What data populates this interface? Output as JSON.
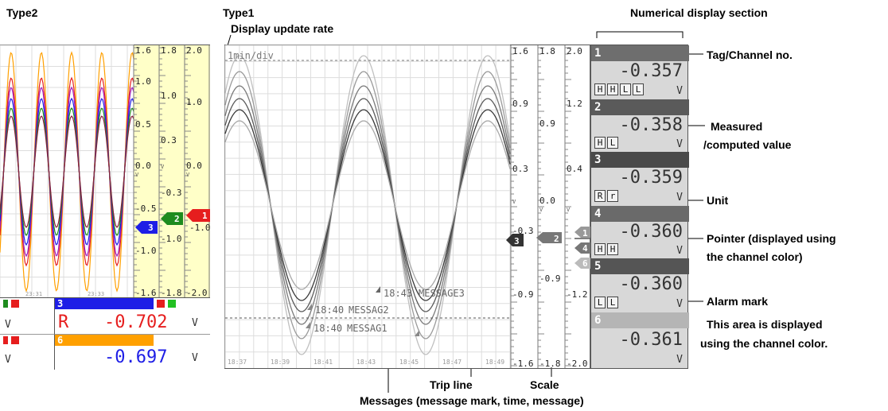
{
  "headings": {
    "type2": "Type2",
    "type1": "Type1"
  },
  "annotations": {
    "update_rate": "Display update rate",
    "numerical_section": "Numerical display section",
    "tag_channel": "Tag/Channel no.",
    "measured_1": "Measured",
    "measured_2": "/computed value",
    "unit": "Unit",
    "pointer_1": "Pointer (displayed using",
    "pointer_2": "the channel color)",
    "alarm_mark": "Alarm mark",
    "area_1": "This area is displayed",
    "area_2": "using the channel color.",
    "trip_line": "Trip line",
    "scale": "Scale",
    "messages": "Messages (message mark, time, message)"
  },
  "type1": {
    "rate_text": "1min/div",
    "time_ticks": [
      "18:37",
      "18:39",
      "18:41",
      "18:43",
      "18:45",
      "18:47",
      "18:49"
    ],
    "messages": [
      {
        "time": "18:43",
        "text": "MESSAGE3"
      },
      {
        "time": "18:40",
        "text": "MESSAG2"
      },
      {
        "time": "18:40",
        "text": "MESSAG1"
      }
    ],
    "scale1": [
      "1.6",
      "0.9",
      "0.3",
      "-0.3",
      "-0.9",
      "-1.6"
    ],
    "scale2": [
      "1.8",
      "0.9",
      "0.0",
      "-0.9",
      "-1.8"
    ],
    "scale3": [
      "2.0",
      "1.2",
      "0.4",
      "-1.2",
      "-2.0"
    ],
    "scale_unit": "V",
    "pointers": [
      "3",
      "2",
      "1",
      "4",
      "6"
    ],
    "channels": [
      {
        "no": "1",
        "value": "-0.357",
        "unit": "V",
        "alarms": [
          "H",
          "H",
          "L",
          "L"
        ],
        "color": "#6e6e6e"
      },
      {
        "no": "2",
        "value": "-0.358",
        "unit": "V",
        "alarms": [
          "H",
          "L"
        ],
        "color": "#5a5a5a"
      },
      {
        "no": "3",
        "value": "-0.359",
        "unit": "V",
        "alarms": [
          "R",
          "r"
        ],
        "color": "#4a4a4a"
      },
      {
        "no": "4",
        "value": "-0.360",
        "unit": "V",
        "alarms": [
          "H",
          "H"
        ],
        "color": "#6a6a6a"
      },
      {
        "no": "5",
        "value": "-0.360",
        "unit": "V",
        "alarms": [
          "L",
          "L"
        ],
        "color": "#555555"
      },
      {
        "no": "6",
        "value": "-0.361",
        "unit": "V",
        "alarms": [],
        "color": "#b5b5b5"
      }
    ]
  },
  "type2": {
    "scale1": [
      "1.6",
      "1.0",
      "0.5",
      "0.0",
      "-0.5",
      "-1.0",
      "-1.6"
    ],
    "scale2": [
      "1.8",
      "1.0",
      "0.3",
      "-0.3",
      "-1.0",
      "-1.8"
    ],
    "scale3": [
      "2.0",
      "1.0",
      "0.0",
      "-1.0",
      "-2.0"
    ],
    "scale_unit": "V",
    "time_ticks": [
      "23:31",
      "23:33"
    ],
    "pointers": [
      "3",
      "2",
      "1"
    ],
    "pointer_value": "-1.0",
    "row1": {
      "left_unit": "V",
      "ch_no": "3",
      "mark": "R",
      "value": "-0.702",
      "unit": "V",
      "color": "#1e1ee6"
    },
    "row2": {
      "left_unit": "V",
      "ch_no": "6",
      "value": "-0.697",
      "unit": "V",
      "color": "#ffa000"
    }
  }
}
